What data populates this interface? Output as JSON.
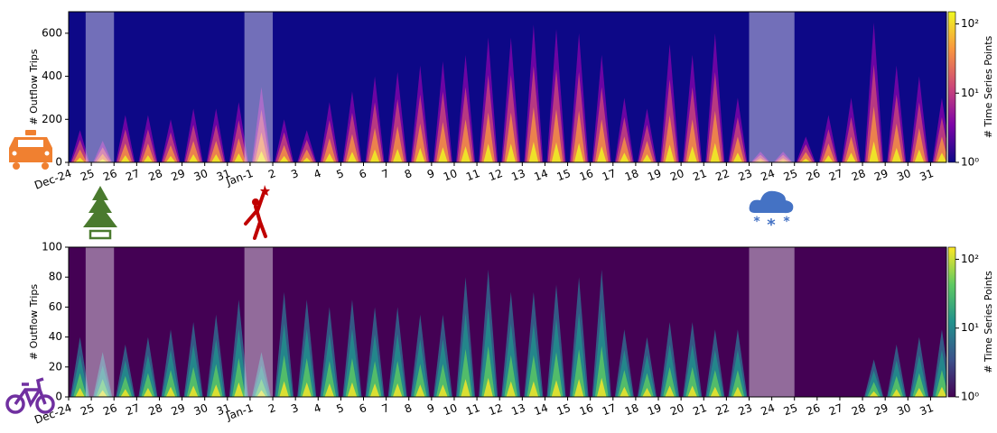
{
  "chart_data": [
    {
      "type": "heatmap",
      "ylabel": "# Outflow Trips",
      "colorbar_label": "# Time Series Points",
      "background": "#0d0887",
      "colors": [
        "#7e03a8",
        "#cc4778",
        "#f89540",
        "#f0f921"
      ],
      "colormap": [
        "#0d0887",
        "#7e03a8",
        "#cc4778",
        "#f89540",
        "#f0f921"
      ],
      "xlim": [
        0,
        38.7
      ],
      "xticks": [
        {
          "value": 0,
          "label": "Dec-24"
        },
        {
          "value": 1,
          "label": "25"
        },
        {
          "value": 2,
          "label": "26"
        },
        {
          "value": 3,
          "label": "27"
        },
        {
          "value": 4,
          "label": "28"
        },
        {
          "value": 5,
          "label": "29"
        },
        {
          "value": 6,
          "label": "30"
        },
        {
          "value": 7,
          "label": "31"
        },
        {
          "value": 8,
          "label": "Jan-1"
        },
        {
          "value": 9,
          "label": "2"
        },
        {
          "value": 10,
          "label": "3"
        },
        {
          "value": 11,
          "label": "4"
        },
        {
          "value": 12,
          "label": "5"
        },
        {
          "value": 13,
          "label": "6"
        },
        {
          "value": 14,
          "label": "7"
        },
        {
          "value": 15,
          "label": "8"
        },
        {
          "value": 16,
          "label": "9"
        },
        {
          "value": 17,
          "label": "10"
        },
        {
          "value": 18,
          "label": "11"
        },
        {
          "value": 19,
          "label": "12"
        },
        {
          "value": 20,
          "label": "13"
        },
        {
          "value": 21,
          "label": "14"
        },
        {
          "value": 22,
          "label": "15"
        },
        {
          "value": 23,
          "label": "16"
        },
        {
          "value": 24,
          "label": "17"
        },
        {
          "value": 25,
          "label": "18"
        },
        {
          "value": 26,
          "label": "19"
        },
        {
          "value": 27,
          "label": "20"
        },
        {
          "value": 28,
          "label": "21"
        },
        {
          "value": 29,
          "label": "22"
        },
        {
          "value": 30,
          "label": "23"
        },
        {
          "value": 31,
          "label": "24"
        },
        {
          "value": 32,
          "label": "25"
        },
        {
          "value": 33,
          "label": "26"
        },
        {
          "value": 34,
          "label": "27"
        },
        {
          "value": 35,
          "label": "28"
        },
        {
          "value": 36,
          "label": "29"
        },
        {
          "value": 37,
          "label": "30"
        },
        {
          "value": 38,
          "label": "31"
        }
      ],
      "ylim": [
        0,
        700
      ],
      "yticks": [
        0,
        200,
        400,
        600
      ],
      "clim": [
        1,
        150
      ],
      "cticks": [
        {
          "value": 1,
          "label": "10⁰"
        },
        {
          "value": 10,
          "label": "10¹"
        },
        {
          "value": 100,
          "label": "10²"
        }
      ],
      "highlights": [
        [
          0.75,
          2
        ],
        [
          7.75,
          9
        ],
        [
          30,
          32
        ]
      ],
      "values": [
        150,
        100,
        220,
        220,
        200,
        250,
        250,
        280,
        350,
        200,
        150,
        280,
        330,
        400,
        420,
        450,
        470,
        500,
        580,
        580,
        640,
        620,
        600,
        500,
        300,
        250,
        550,
        500,
        600,
        300,
        50,
        50,
        120,
        220,
        300,
        650,
        450,
        400,
        300
      ]
    },
    {
      "type": "heatmap",
      "ylabel": "# Outflow Trips",
      "colorbar_label": "# Time Series Points",
      "background": "#440154",
      "colors": [
        "#31688e",
        "#21918c",
        "#5ec962",
        "#fde725"
      ],
      "colormap": [
        "#440154",
        "#3b528b",
        "#21918c",
        "#5ec962",
        "#fde725"
      ],
      "xlim": [
        0,
        38.7
      ],
      "xticks": [
        {
          "value": 0,
          "label": "Dec-24"
        },
        {
          "value": 1,
          "label": "25"
        },
        {
          "value": 2,
          "label": "26"
        },
        {
          "value": 3,
          "label": "27"
        },
        {
          "value": 4,
          "label": "28"
        },
        {
          "value": 5,
          "label": "29"
        },
        {
          "value": 6,
          "label": "30"
        },
        {
          "value": 7,
          "label": "31"
        },
        {
          "value": 8,
          "label": "Jan-1"
        },
        {
          "value": 9,
          "label": "2"
        },
        {
          "value": 10,
          "label": "3"
        },
        {
          "value": 11,
          "label": "4"
        },
        {
          "value": 12,
          "label": "5"
        },
        {
          "value": 13,
          "label": "6"
        },
        {
          "value": 14,
          "label": "7"
        },
        {
          "value": 15,
          "label": "8"
        },
        {
          "value": 16,
          "label": "9"
        },
        {
          "value": 17,
          "label": "10"
        },
        {
          "value": 18,
          "label": "11"
        },
        {
          "value": 19,
          "label": "12"
        },
        {
          "value": 20,
          "label": "13"
        },
        {
          "value": 21,
          "label": "14"
        },
        {
          "value": 22,
          "label": "15"
        },
        {
          "value": 23,
          "label": "16"
        },
        {
          "value": 24,
          "label": "17"
        },
        {
          "value": 25,
          "label": "18"
        },
        {
          "value": 26,
          "label": "19"
        },
        {
          "value": 27,
          "label": "20"
        },
        {
          "value": 28,
          "label": "21"
        },
        {
          "value": 29,
          "label": "22"
        },
        {
          "value": 30,
          "label": "23"
        },
        {
          "value": 31,
          "label": "24"
        },
        {
          "value": 32,
          "label": "25"
        },
        {
          "value": 33,
          "label": "26"
        },
        {
          "value": 34,
          "label": "27"
        },
        {
          "value": 35,
          "label": "28"
        },
        {
          "value": 36,
          "label": "29"
        },
        {
          "value": 37,
          "label": "30"
        },
        {
          "value": 38,
          "label": "31"
        }
      ],
      "ylim": [
        0,
        100
      ],
      "yticks": [
        0,
        20,
        40,
        60,
        80,
        100
      ],
      "clim": [
        1,
        150
      ],
      "cticks": [
        {
          "value": 1,
          "label": "10⁰"
        },
        {
          "value": 10,
          "label": "10¹"
        },
        {
          "value": 100,
          "label": "10²"
        }
      ],
      "highlights": [
        [
          0.75,
          2
        ],
        [
          7.75,
          9
        ],
        [
          30,
          32
        ]
      ],
      "values": [
        40,
        30,
        35,
        40,
        45,
        50,
        55,
        65,
        30,
        70,
        65,
        60,
        65,
        60,
        60,
        55,
        55,
        80,
        85,
        70,
        70,
        75,
        80,
        85,
        45,
        40,
        50,
        50,
        45,
        45,
        0,
        0,
        0,
        0,
        0,
        25,
        35,
        40,
        45
      ]
    }
  ]
}
